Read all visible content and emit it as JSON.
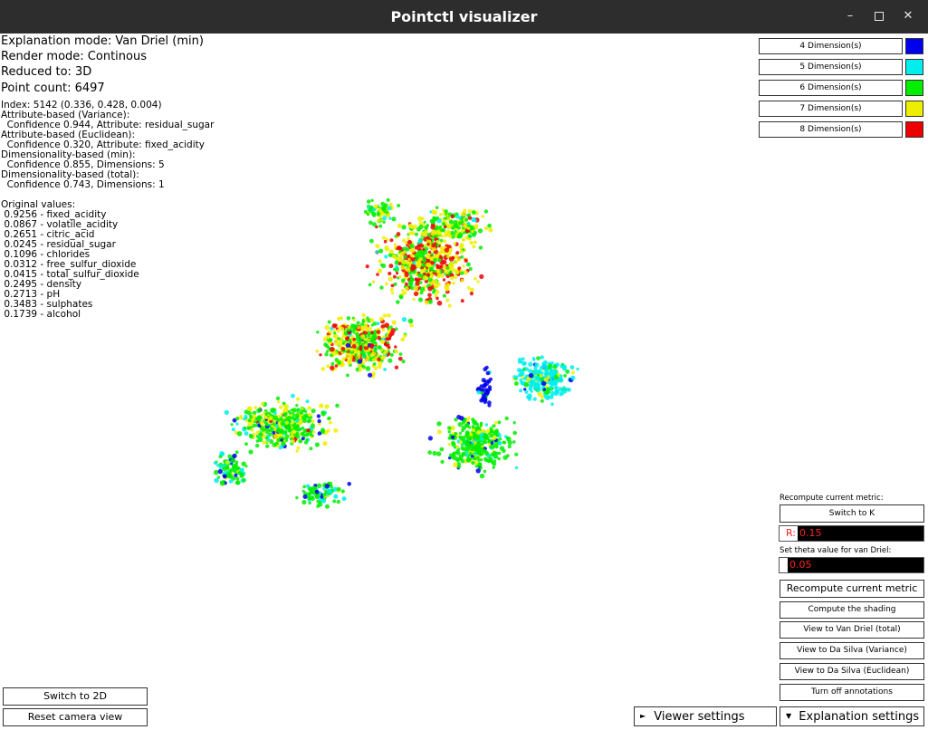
{
  "window": {
    "title": "Pointctl visualizer"
  },
  "info": {
    "explanation_mode": "Explanation mode: Van Driel (min)",
    "render_mode": "Render mode: Continous",
    "reduced_to": "Reduced to: 3D",
    "point_count": "Point count: 6497"
  },
  "details": [
    "Index: 5142 (0.336, 0.428, 0.004)",
    "Attribute-based (Variance):",
    "  Confidence 0.944, Attribute: residual_sugar",
    "Attribute-based (Euclidean):",
    "  Confidence 0.320, Attribute: fixed_acidity",
    "Dimensionality-based (min):",
    "  Confidence 0.855, Dimensions: 5",
    "Dimensionality-based (total):",
    "  Confidence 0.743, Dimensions: 1"
  ],
  "original_values": [
    "Original values:",
    " 0.9256 - fixed_acidity",
    " 0.0867 - volatile_acidity",
    " 0.2651 - citric_acid",
    " 0.0245 - residual_sugar",
    " 0.1096 - chlorides",
    " 0.0312 - free_sulfur_dioxide",
    " 0.0415 - total_sulfur_dioxide",
    " 0.2495 - density",
    " 0.2713 - pH",
    " 0.3483 - sulphates",
    " 0.1739 - alcohol"
  ],
  "legend": [
    {
      "label": "4 Dimension(s)",
      "color": "#0000ee"
    },
    {
      "label": "5 Dimension(s)",
      "color": "#00eeee"
    },
    {
      "label": "6 Dimension(s)",
      "color": "#00ee00"
    },
    {
      "label": "7 Dimension(s)",
      "color": "#eeee00"
    },
    {
      "label": "8 Dimension(s)",
      "color": "#ee0000"
    }
  ],
  "panel": {
    "recompute_label": "Recompute current metric:",
    "switch_to_k": "Switch to K",
    "r_label": "R:",
    "r_value": "0.15",
    "theta_label": "Set theta value for van Driel:",
    "theta_value": "0.05",
    "recompute_button": "Recompute current metric",
    "compute_shading": "Compute the shading",
    "view_van_driel_total": "View to Van Driel (total)",
    "view_da_silva_variance": "View to Da Silva (Variance)",
    "view_da_silva_euclidean": "View to Da Silva (Euclidean)",
    "turn_off_annotations": "Turn off annotations"
  },
  "bottom": {
    "switch_2d": "Switch to 2D",
    "reset_camera": "Reset camera view",
    "viewer_settings": "Viewer settings",
    "explanation_settings": "Explanation settings"
  }
}
